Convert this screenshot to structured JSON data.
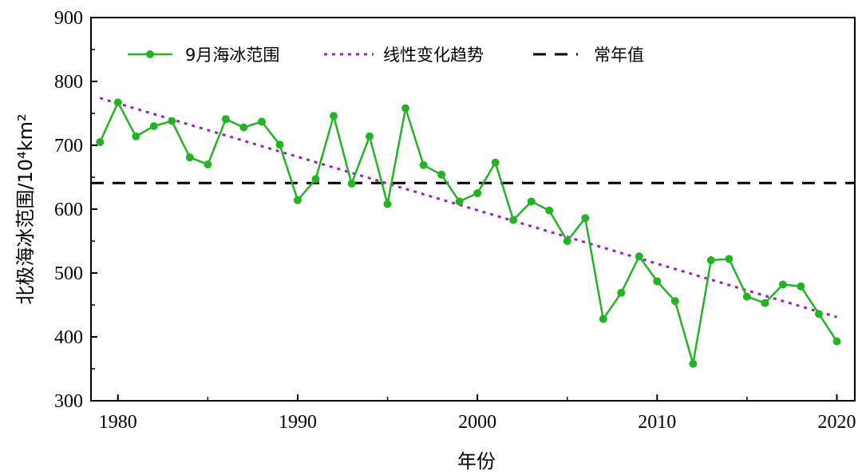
{
  "chart_data": {
    "type": "line",
    "title": "",
    "xlabel": "年份",
    "ylabel": "北极海冰范围/10⁴km²",
    "xlim": [
      1978.5,
      2021
    ],
    "ylim": [
      300,
      900
    ],
    "xticks": [
      1980,
      1990,
      2000,
      2010,
      2020
    ],
    "yticks": [
      300,
      400,
      500,
      600,
      700,
      800,
      900
    ],
    "legend_position": "top",
    "series": [
      {
        "name": "9月海冰范围",
        "style": "solid-line-with-markers",
        "color": "#22b422",
        "x": [
          1979,
          1980,
          1981,
          1982,
          1983,
          1984,
          1985,
          1986,
          1987,
          1988,
          1989,
          1990,
          1991,
          1992,
          1993,
          1994,
          1995,
          1996,
          1997,
          1998,
          1999,
          2000,
          2001,
          2002,
          2003,
          2004,
          2005,
          2006,
          2007,
          2008,
          2009,
          2010,
          2011,
          2012,
          2013,
          2014,
          2015,
          2016,
          2017,
          2018,
          2019,
          2020
        ],
        "values": [
          705,
          767,
          714,
          730,
          738,
          681,
          670,
          741,
          728,
          737,
          701,
          614,
          647,
          746,
          640,
          714,
          608,
          758,
          669,
          654,
          612,
          625,
          673,
          583,
          612,
          598,
          550,
          586,
          428,
          469,
          526,
          487,
          456,
          358,
          520,
          522,
          463,
          453,
          482,
          479,
          436,
          393
        ]
      },
      {
        "name": "线性变化趋势",
        "style": "dotted",
        "color": "#9b1fc2",
        "x": [
          1979,
          2020
        ],
        "values": [
          774,
          431
        ]
      },
      {
        "name": "常年值",
        "style": "dashed",
        "color": "#000000",
        "x": [
          1978.5,
          2021
        ],
        "values": [
          641,
          641
        ]
      }
    ]
  }
}
